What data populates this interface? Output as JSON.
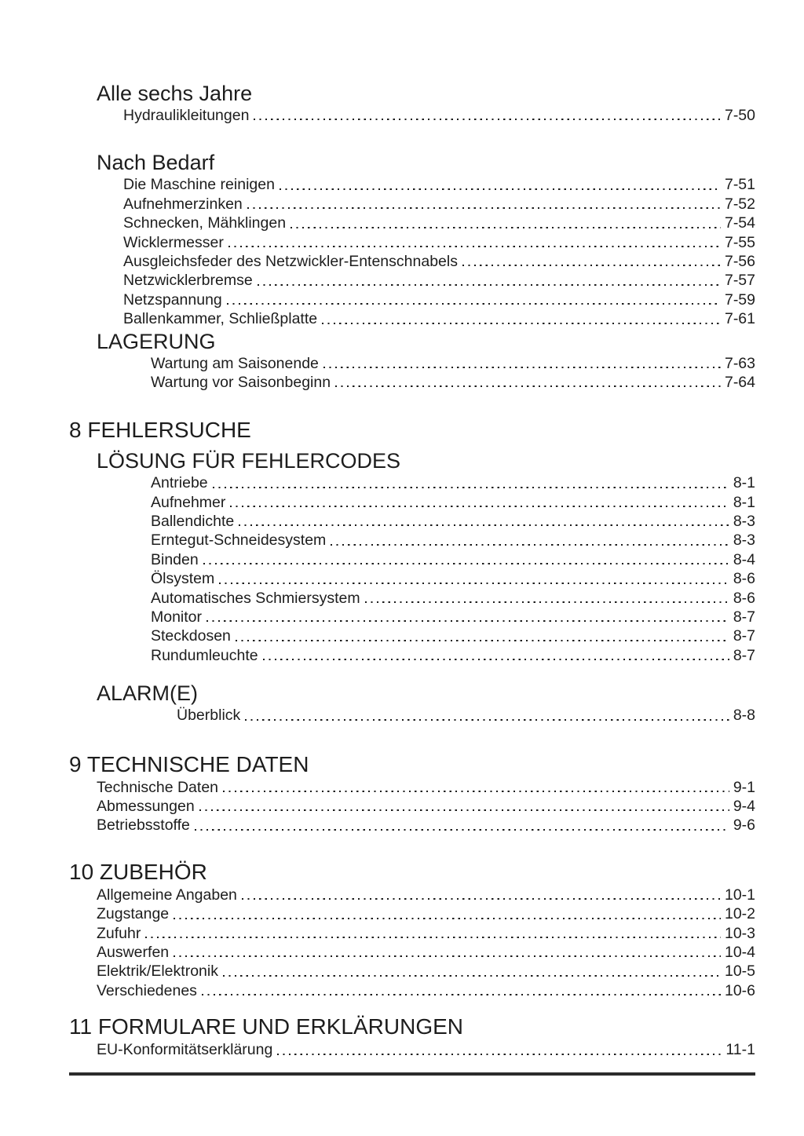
{
  "colors": {
    "text": "#1d1d1d",
    "leader_dots": "#1d1d1d",
    "footer_rule": "#2c2c2c",
    "background": "#ffffff"
  },
  "toc": {
    "blocks": [
      {
        "kind": "section",
        "title": "Alle sechs Jahre",
        "level": 1,
        "items": [
          {
            "label": "Hydraulikleitungen",
            "page": "7-50"
          }
        ]
      },
      {
        "kind": "section",
        "title": "Nach Bedarf",
        "level": 1,
        "items": [
          {
            "label": "Die Maschine reinigen",
            "page": "7-51"
          },
          {
            "label": "Aufnehmerzinken",
            "page": "7-52"
          },
          {
            "label": "Schnecken, Mähklingen",
            "page": "7-54"
          },
          {
            "label": "Wicklermesser",
            "page": "7-55"
          },
          {
            "label": "Ausgleichsfeder des Netzwickler-Entenschnabels",
            "page": "7-56"
          },
          {
            "label": "Netzwicklerbremse",
            "page": "7-57"
          },
          {
            "label": "Netzspannung",
            "page": "7-59"
          },
          {
            "label": "Ballenkammer, Schließplatte",
            "page": "7-61"
          }
        ]
      },
      {
        "kind": "section",
        "title": "LAGERUNG",
        "level": 2,
        "items": [
          {
            "label": "Wartung am Saisonende",
            "page": "7-63"
          },
          {
            "label": "Wartung vor Saisonbeginn",
            "page": "7-64"
          }
        ]
      },
      {
        "kind": "chapter",
        "title": "8 FEHLERSUCHE",
        "level": 2,
        "items": []
      },
      {
        "kind": "section",
        "title": "LÖSUNG FÜR FEHLERCODES",
        "level": 2,
        "items": [
          {
            "label": "Antriebe",
            "page": "8-1"
          },
          {
            "label": "Aufnehmer",
            "page": "8-1"
          },
          {
            "label": "Ballendichte",
            "page": "8-3"
          },
          {
            "label": "Erntegut-Schneidesystem",
            "page": "8-3"
          },
          {
            "label": "Binden",
            "page": "8-4"
          },
          {
            "label": "Ölsystem",
            "page": "8-6"
          },
          {
            "label": "Automatisches Schmiersystem",
            "page": "8-6"
          },
          {
            "label": "Monitor",
            "page": "8-7"
          },
          {
            "label": "Steckdosen",
            "page": "8-7"
          },
          {
            "label": "Rundumleuchte",
            "page": "8-7"
          }
        ]
      },
      {
        "kind": "section",
        "title": "ALARM(E)",
        "level": 3,
        "items": [
          {
            "label": "Überblick",
            "page": "8-8"
          }
        ]
      },
      {
        "kind": "chapter",
        "title": "9 TECHNISCHE DATEN",
        "level": 0,
        "items": [
          {
            "label": "Technische Daten",
            "page": "9-1"
          },
          {
            "label": "Abmessungen",
            "page": "9-4"
          },
          {
            "label": "Betriebsstoffe",
            "page": "9-6"
          }
        ]
      },
      {
        "kind": "chapter",
        "title": "10 ZUBEHÖR",
        "level": 0,
        "items": [
          {
            "label": "Allgemeine Angaben",
            "page": "10-1"
          },
          {
            "label": "Zugstange",
            "page": "10-2"
          },
          {
            "label": "Zufuhr",
            "page": "10-3"
          },
          {
            "label": "Auswerfen",
            "page": "10-4"
          },
          {
            "label": "Elektrik/Elektronik",
            "page": "10-5"
          },
          {
            "label": "Verschiedenes",
            "page": "10-6"
          }
        ]
      },
      {
        "kind": "chapter",
        "title": "11 FORMULARE UND ERKLÄRUNGEN",
        "level": 0,
        "items": [
          {
            "label": "EU-Konformitätserklärung",
            "page": "11-1"
          }
        ]
      }
    ]
  }
}
